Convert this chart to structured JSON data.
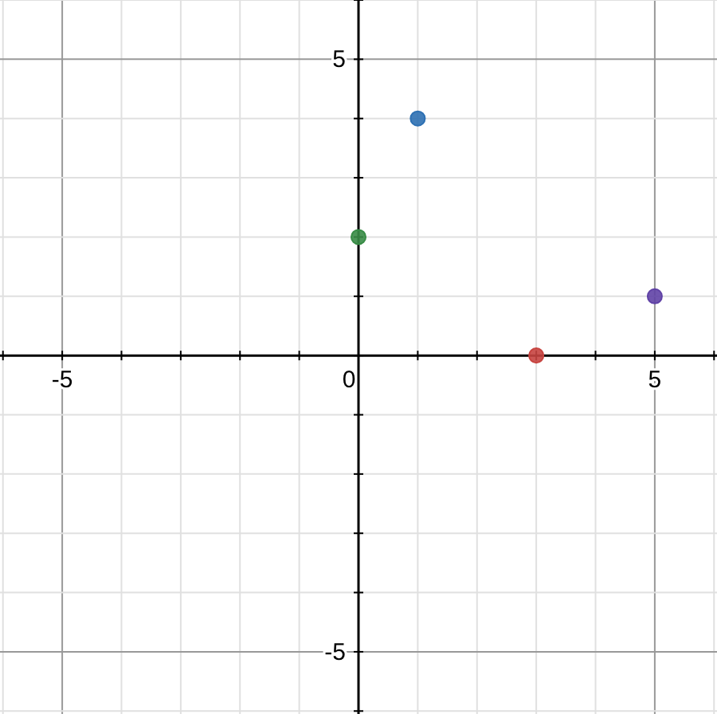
{
  "chart_data": {
    "type": "scatter",
    "x": [
      1,
      0,
      3,
      5
    ],
    "values": [
      4,
      2,
      0,
      1
    ],
    "colors": [
      "#2d70b3",
      "#388c46",
      "#c74440",
      "#6042a6"
    ],
    "marker": "circle",
    "xlim": [
      -6.05,
      6.05
    ],
    "ylim": [
      -6.05,
      6.0
    ],
    "xticks": [
      {
        "value": -6,
        "label": null
      },
      -5,
      {
        "value": -4,
        "label": null
      },
      {
        "value": -3,
        "label": null
      },
      {
        "value": -2,
        "label": null
      },
      {
        "value": -1,
        "label": null
      },
      0,
      {
        "value": 1,
        "label": null
      },
      {
        "value": 2,
        "label": null
      },
      {
        "value": 3,
        "label": null
      },
      {
        "value": 4,
        "label": null
      },
      5,
      {
        "value": 6,
        "label": null
      }
    ],
    "yticks": [
      {
        "value": -6,
        "label": null
      },
      -5,
      {
        "value": -4,
        "label": null
      },
      {
        "value": -3,
        "label": null
      },
      {
        "value": -2,
        "label": null
      },
      {
        "value": -1,
        "label": null
      },
      {
        "value": 0,
        "label": null
      },
      {
        "value": 1,
        "label": null
      },
      {
        "value": 2,
        "label": null
      },
      {
        "value": 3,
        "label": null
      },
      {
        "value": 4,
        "label": null
      },
      5,
      {
        "value": 6,
        "label": null
      }
    ],
    "grid": true
  }
}
